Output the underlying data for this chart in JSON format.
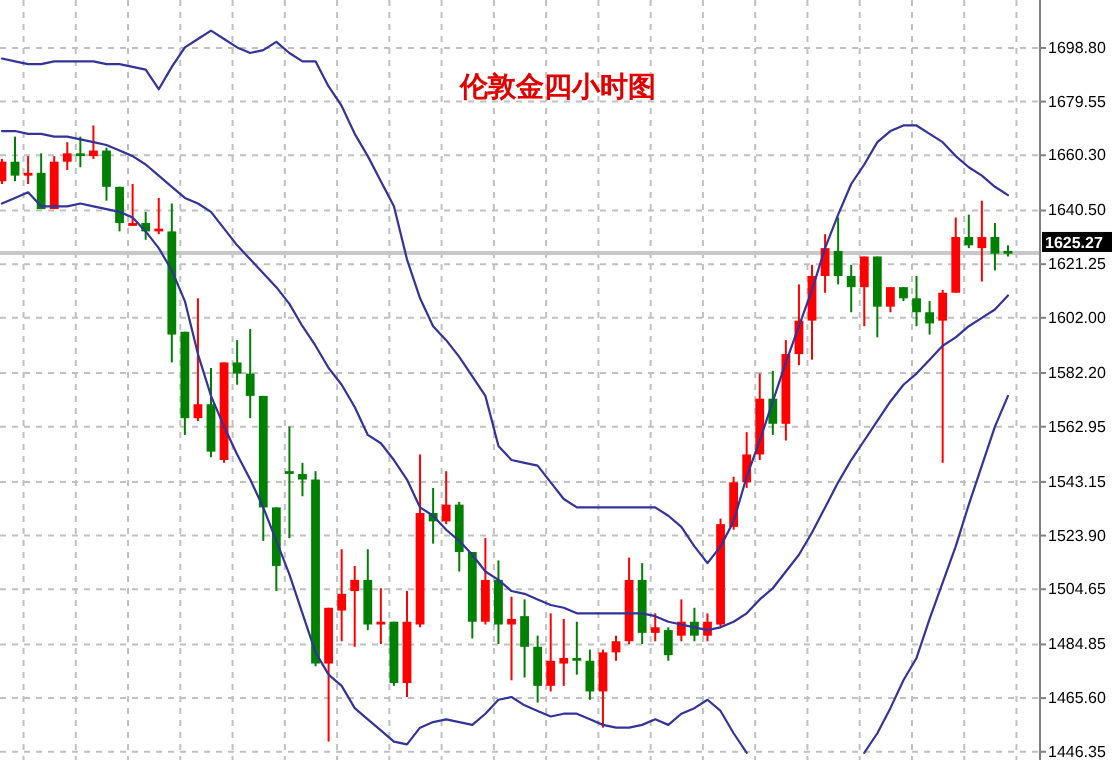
{
  "chart_data": {
    "type": "candlestick",
    "title": "伦敦金四小时图",
    "categories": [
      null,
      null,
      null,
      null,
      null,
      null,
      null,
      null,
      null,
      null,
      null,
      null,
      null,
      null,
      null,
      null,
      null,
      null,
      null,
      null,
      null,
      null,
      null,
      null,
      null,
      null,
      null,
      null,
      null,
      null,
      null,
      null,
      null,
      null,
      null,
      null,
      null,
      null,
      null,
      null,
      null,
      null,
      null,
      null,
      null,
      null,
      null,
      null,
      null,
      null,
      null,
      null,
      null,
      null,
      null,
      null,
      null,
      null,
      null,
      null,
      null,
      null,
      null,
      null,
      null,
      null,
      null,
      null,
      null,
      null,
      null,
      null,
      null,
      null,
      null,
      null,
      null,
      null
    ],
    "ohlc": [
      [
        1651,
        1659,
        1650,
        1658
      ],
      [
        1658,
        1667,
        1651,
        1653
      ],
      [
        1653,
        1660,
        1650,
        1654
      ],
      [
        1654,
        1661,
        1641,
        1641
      ],
      [
        1641,
        1660,
        1641,
        1658
      ],
      [
        1658,
        1665,
        1655,
        1661
      ],
      [
        1661,
        1667,
        1656,
        1660
      ],
      [
        1660,
        1671,
        1659,
        1662
      ],
      [
        1662,
        1663,
        1644,
        1649
      ],
      [
        1649,
        1649,
        1633,
        1636
      ],
      [
        1635,
        1650,
        1635,
        1636
      ],
      [
        1636,
        1640,
        1630,
        1633
      ],
      [
        1633,
        1645,
        1632,
        1634
      ],
      [
        1633,
        1643,
        1586,
        1596
      ],
      [
        1597,
        1597,
        1560,
        1566
      ],
      [
        1566,
        1609,
        1565,
        1571
      ],
      [
        1571,
        1584,
        1552,
        1554
      ],
      [
        1551,
        1586,
        1550,
        1586
      ],
      [
        1586,
        1594,
        1578,
        1582
      ],
      [
        1582,
        1598,
        1566,
        1574
      ],
      [
        1574,
        1574,
        1522,
        1534
      ],
      [
        1534,
        1534,
        1504,
        1513
      ],
      [
        1547,
        1563,
        1523,
        1546
      ],
      [
        1546,
        1550,
        1538,
        1544
      ],
      [
        1544,
        1547,
        1477,
        1478
      ],
      [
        1478,
        1498,
        1450,
        1498
      ],
      [
        1497,
        1519,
        1486,
        1503
      ],
      [
        1504,
        1513,
        1484,
        1508
      ],
      [
        1508,
        1519,
        1490,
        1492
      ],
      [
        1492,
        1505,
        1485,
        1493
      ],
      [
        1493,
        1493,
        1470,
        1471
      ],
      [
        1471,
        1504,
        1466,
        1493
      ],
      [
        1492,
        1553,
        1491,
        1532
      ],
      [
        1532,
        1541,
        1521,
        1529
      ],
      [
        1529,
        1547,
        1528,
        1535
      ],
      [
        1535,
        1536,
        1511,
        1518
      ],
      [
        1518,
        1518,
        1487,
        1493
      ],
      [
        1493,
        1523,
        1492,
        1508
      ],
      [
        1508,
        1515,
        1485,
        1492
      ],
      [
        1492,
        1502,
        1472,
        1494
      ],
      [
        1495,
        1501,
        1473,
        1484
      ],
      [
        1484,
        1488,
        1464,
        1470
      ],
      [
        1470,
        1496,
        1468,
        1479
      ],
      [
        1478,
        1494,
        1470,
        1480
      ],
      [
        1480,
        1493,
        1474,
        1479
      ],
      [
        1479,
        1483,
        1465,
        1468
      ],
      [
        1468,
        1483,
        1455,
        1482
      ],
      [
        1482,
        1488,
        1479,
        1486
      ],
      [
        1486,
        1516,
        1485,
        1508
      ],
      [
        1508,
        1514,
        1485,
        1489
      ],
      [
        1489,
        1496,
        1486,
        1491
      ],
      [
        1490,
        1491,
        1479,
        1481
      ],
      [
        1488,
        1501,
        1486,
        1493
      ],
      [
        1493,
        1498,
        1486,
        1488
      ],
      [
        1488,
        1496,
        1486,
        1493
      ],
      [
        1492,
        1530,
        1491,
        1528
      ],
      [
        1527,
        1545,
        1526,
        1543
      ],
      [
        1543,
        1561,
        1541,
        1553
      ],
      [
        1553,
        1582,
        1551,
        1573
      ],
      [
        1573,
        1583,
        1560,
        1564
      ],
      [
        1564,
        1594,
        1558,
        1589
      ],
      [
        1589,
        1614,
        1585,
        1601
      ],
      [
        1601,
        1621,
        1587,
        1617
      ],
      [
        1617,
        1632,
        1611,
        1627
      ],
      [
        1626,
        1638,
        1614,
        1617
      ],
      [
        1617,
        1621,
        1604,
        1613
      ],
      [
        1613,
        1624,
        1599,
        1624
      ],
      [
        1624,
        1624,
        1595,
        1606
      ],
      [
        1606,
        1613,
        1604,
        1613
      ],
      [
        1613,
        1613,
        1608,
        1609
      ],
      [
        1609,
        1617,
        1599,
        1604
      ],
      [
        1604,
        1608,
        1596,
        1600
      ],
      [
        1601,
        1612,
        1550,
        1611
      ],
      [
        1611,
        1638,
        1611,
        1631
      ],
      [
        1631,
        1639,
        1627,
        1628
      ],
      [
        1627,
        1644,
        1615,
        1631
      ],
      [
        1631,
        1636,
        1619,
        1625
      ],
      [
        1626,
        1628,
        1624,
        1625
      ]
    ],
    "colors": [
      "#ff0000",
      "#008000",
      "#ff0000",
      "#008000",
      "#ff0000",
      "#ff0000",
      "#008000",
      "#ff0000",
      "#008000",
      "#008000",
      "#ff0000",
      "#008000",
      "#ff0000",
      "#008000",
      "#008000",
      "#ff0000",
      "#008000",
      "#ff0000",
      "#008000",
      "#008000",
      "#008000",
      "#008000",
      "#008000",
      "#008000",
      "#008000",
      "#ff0000",
      "#ff0000",
      "#ff0000",
      "#008000",
      "#ff0000",
      "#008000",
      "#ff0000",
      "#ff0000",
      "#008000",
      "#ff0000",
      "#008000",
      "#008000",
      "#ff0000",
      "#008000",
      "#ff0000",
      "#008000",
      "#008000",
      "#ff0000",
      "#ff0000",
      "#008000",
      "#008000",
      "#ff0000",
      "#ff0000",
      "#ff0000",
      "#008000",
      "#ff0000",
      "#008000",
      "#ff0000",
      "#008000",
      "#ff0000",
      "#ff0000",
      "#ff0000",
      "#ff0000",
      "#ff0000",
      "#008000",
      "#ff0000",
      "#ff0000",
      "#ff0000",
      "#ff0000",
      "#008000",
      "#008000",
      "#ff0000",
      "#008000",
      "#ff0000",
      "#008000",
      "#008000",
      "#008000",
      "#ff0000",
      "#ff0000",
      "#008000",
      "#ff0000",
      "#008000",
      "#008000"
    ],
    "series": [
      {
        "type": "line",
        "color": "#333399",
        "values": [
          1695,
          1694,
          1693,
          1693,
          1694,
          1694,
          1694,
          1694,
          1693,
          1693,
          1692,
          1691,
          1684,
          1692,
          1699,
          1702,
          1705,
          1702,
          1699,
          1697,
          1698,
          1701,
          1697,
          1694,
          1694,
          1685,
          1678,
          1668,
          1660,
          1651,
          1642,
          1623,
          1609,
          1599,
          1594,
          1588,
          1581,
          1574,
          1556,
          1551,
          1550,
          1549,
          1543,
          1537,
          1534,
          1534,
          1534,
          1534,
          1534,
          1534,
          1534,
          1531,
          1527,
          1520,
          1514,
          1520,
          1529,
          1545,
          1558,
          1572,
          1586,
          1599,
          1612,
          1627,
          1639,
          1650,
          1657,
          1665,
          1669,
          1671,
          1671,
          1668,
          1665,
          1660,
          1656,
          1653,
          1649,
          1646
        ]
      },
      {
        "type": "line",
        "color": "#333399",
        "values": [
          1669,
          1669,
          1668,
          1668,
          1667,
          1667,
          1666,
          1665,
          1664,
          1662,
          1660,
          1657,
          1653,
          1649,
          1645,
          1643,
          1640,
          1634,
          1628,
          1623,
          1618,
          1613,
          1607,
          1599,
          1592,
          1584,
          1578,
          1570,
          1560,
          1557,
          1551,
          1544,
          1534,
          1531,
          1526,
          1522,
          1517,
          1511,
          1508,
          1504,
          1503,
          1501,
          1499,
          1498,
          1496,
          1496,
          1496,
          1496,
          1496,
          1496,
          1495,
          1493,
          1492,
          1491,
          1490,
          1491,
          1493,
          1496,
          1501,
          1505,
          1511,
          1517,
          1525,
          1534,
          1543,
          1551,
          1558,
          1565,
          1572,
          1578,
          1582,
          1587,
          1592,
          1595,
          1599,
          1602,
          1605,
          1610
        ]
      },
      {
        "type": "line",
        "color": "#333399",
        "values": [
          1643,
          1645,
          1647,
          1642,
          1642,
          1642,
          1643,
          1642,
          1641,
          1640,
          1638,
          1633,
          1627,
          1619,
          1608,
          1589,
          1574,
          1563,
          1553,
          1544,
          1534,
          1522,
          1510,
          1496,
          1482,
          1474,
          1470,
          1462,
          1458,
          1454,
          1450,
          1449,
          1455,
          1457,
          1458,
          1457,
          1456,
          1460,
          1465,
          1466,
          1463,
          1461,
          1459,
          1460,
          1460,
          1458,
          1456,
          1455,
          1455,
          1456,
          1458,
          1456,
          1460,
          1462,
          1465,
          1461,
          1453,
          1446,
          null,
          null,
          null,
          null,
          null,
          null,
          null,
          null,
          1446,
          1453,
          1462,
          1472,
          1480,
          1494,
          1507,
          1520,
          1535,
          1549,
          1563,
          1574
        ]
      }
    ],
    "ylim": [
      1443.4,
      1716
    ],
    "yticks": [
      {
        "value": 1698.8,
        "label": "1698.80"
      },
      1679.55,
      {
        "value": 1660.3,
        "label": "1660.30"
      },
      {
        "value": 1640.5,
        "label": "1640.50"
      },
      1621.25,
      {
        "value": 1602,
        "label": "1602.00"
      },
      {
        "value": 1582.2,
        "label": "1582.20"
      },
      1562.95,
      1543.15,
      {
        "value": 1523.9,
        "label": "1523.90"
      },
      1504.65,
      1484.85,
      {
        "value": 1465.6,
        "label": "1465.60"
      },
      1446.35
    ],
    "grid": true,
    "tick_labels": "y",
    "ref_lines": [
      {
        "axis": "y",
        "value": 1625.27,
        "label": "1625.27",
        "color": "#c8c8c8"
      }
    ]
  }
}
